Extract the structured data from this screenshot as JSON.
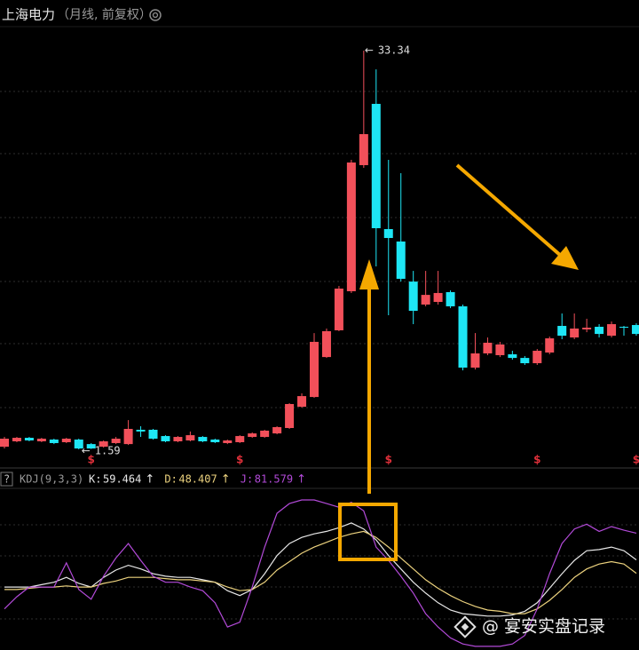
{
  "header": {
    "title": "上海电力",
    "subtitle": "（月线, 前复权）"
  },
  "chart_data": [
    {
      "type": "candlestick",
      "open": [
        1.8,
        2.23,
        2.51,
        2.23,
        2.37,
        2.16,
        2.37,
        2.01,
        1.8,
        2.09,
        2.01,
        3.15,
        3.15,
        2.65,
        2.23,
        2.3,
        2.58,
        2.37,
        2.09,
        2.16,
        2.58,
        2.58,
        2.86,
        3.29,
        4.98,
        5.76,
        8.94,
        11.07,
        14.18,
        24.22,
        29.1,
        19.13,
        18.14,
        14.95,
        13.12,
        13.33,
        14.11,
        12.98,
        8.1,
        9.23,
        9.09,
        9.16,
        8.87,
        8.45,
        9.3,
        11.42,
        10.5,
        11.14,
        11.35,
        10.64,
        11.35,
        11.49
      ],
      "close": [
        2.44,
        2.51,
        2.3,
        2.44,
        2.09,
        2.44,
        1.66,
        1.66,
        2.23,
        2.44,
        3.22,
        3.01,
        2.44,
        2.23,
        2.58,
        2.72,
        2.23,
        2.16,
        2.3,
        2.65,
        2.86,
        3.08,
        3.36,
        5.2,
        5.83,
        10.15,
        11.0,
        14.39,
        24.43,
        26.69,
        19.2,
        18.42,
        15.17,
        12.62,
        13.89,
        14.04,
        12.98,
        8.1,
        9.23,
        10.08,
        9.94,
        8.87,
        8.45,
        9.44,
        10.43,
        10.64,
        11.21,
        11.28,
        10.78,
        11.56,
        11.28,
        10.78
      ],
      "high": [
        2.58,
        2.58,
        2.58,
        2.51,
        2.44,
        2.51,
        2.44,
        2.09,
        2.3,
        2.58,
        3.92,
        3.43,
        3.22,
        2.72,
        2.65,
        3.01,
        2.65,
        2.44,
        2.37,
        2.72,
        2.94,
        3.15,
        3.43,
        5.27,
        6.05,
        10.85,
        11.21,
        14.6,
        24.64,
        33.34,
        31.85,
        24.64,
        23.58,
        15.8,
        15.8,
        15.8,
        14.25,
        13.12,
        10.85,
        10.5,
        10.15,
        9.44,
        9.02,
        9.58,
        10.57,
        12.41,
        12.41,
        11.99,
        11.56,
        11.77,
        11.42,
        11.63
      ],
      "low": [
        1.66,
        2.16,
        2.23,
        2.16,
        2.01,
        2.09,
        1.59,
        1.62,
        1.73,
        2.01,
        1.94,
        2.58,
        2.37,
        2.16,
        2.16,
        2.23,
        2.16,
        2.09,
        2.01,
        2.09,
        2.51,
        2.51,
        2.79,
        3.22,
        4.91,
        5.69,
        8.87,
        11.0,
        14.04,
        24.01,
        16.16,
        12.27,
        14.95,
        11.56,
        12.98,
        13.12,
        12.84,
        7.88,
        7.95,
        9.09,
        8.94,
        8.73,
        8.31,
        8.31,
        9.16,
        10.36,
        10.36,
        10.92,
        10.5,
        10.5,
        10.64,
        10.64
      ],
      "ylim": [
        0.25,
        37.37
      ],
      "up_color": "#f2505a",
      "down_color": "#1ee6f5",
      "extreme_pointer": "←",
      "dividend_label": "$",
      "dividend_markers": [
        7,
        19,
        31,
        43,
        51
      ]
    },
    {
      "type": "line",
      "title": "KDJ(9,3,3)",
      "help": "?",
      "arrow": "↑",
      "ylim": [
        -15,
        120
      ],
      "series": [
        {
          "name": "K:",
          "color": "#e8e8e8",
          "values": [
            37,
            37,
            37,
            39,
            41,
            45,
            40,
            37,
            45,
            51,
            55,
            52,
            48,
            46,
            45,
            45,
            43,
            41,
            34,
            30,
            35,
            48,
            63,
            73,
            78,
            81,
            83,
            86,
            90,
            85,
            76,
            63,
            52,
            41,
            32,
            24,
            18,
            15,
            14,
            13,
            13,
            14,
            17,
            24,
            36,
            48,
            59,
            67,
            68,
            70,
            67,
            59.464
          ]
        },
        {
          "name": "D:",
          "color": "#ecd27e",
          "values": [
            35,
            35,
            36,
            37,
            37,
            38,
            37,
            37,
            40,
            42,
            45,
            45,
            45,
            44,
            43,
            43,
            42,
            41,
            37,
            34,
            35,
            41,
            51,
            58,
            65,
            70,
            74,
            78,
            81,
            83,
            78,
            70,
            61,
            52,
            43,
            36,
            30,
            25,
            21,
            18,
            17,
            15,
            15,
            19,
            26,
            35,
            45,
            52,
            56,
            58,
            56,
            48.407
          ]
        },
        {
          "name": "J:",
          "color": "#b24ad8",
          "values": [
            19,
            29,
            37,
            37,
            37,
            57,
            35,
            27,
            46,
            61,
            73,
            59,
            46,
            41,
            41,
            37,
            34,
            24,
            4,
            8,
            37,
            70,
            98,
            106,
            109,
            109,
            106,
            103,
            107,
            100,
            70,
            59,
            46,
            32,
            15,
            4,
            -5,
            -10,
            -12,
            -12,
            -12,
            -10,
            -3,
            19,
            48,
            73,
            85,
            89,
            83,
            87,
            84,
            81.579
          ]
        }
      ]
    }
  ],
  "watermark": "@ 宴安实盘记录"
}
